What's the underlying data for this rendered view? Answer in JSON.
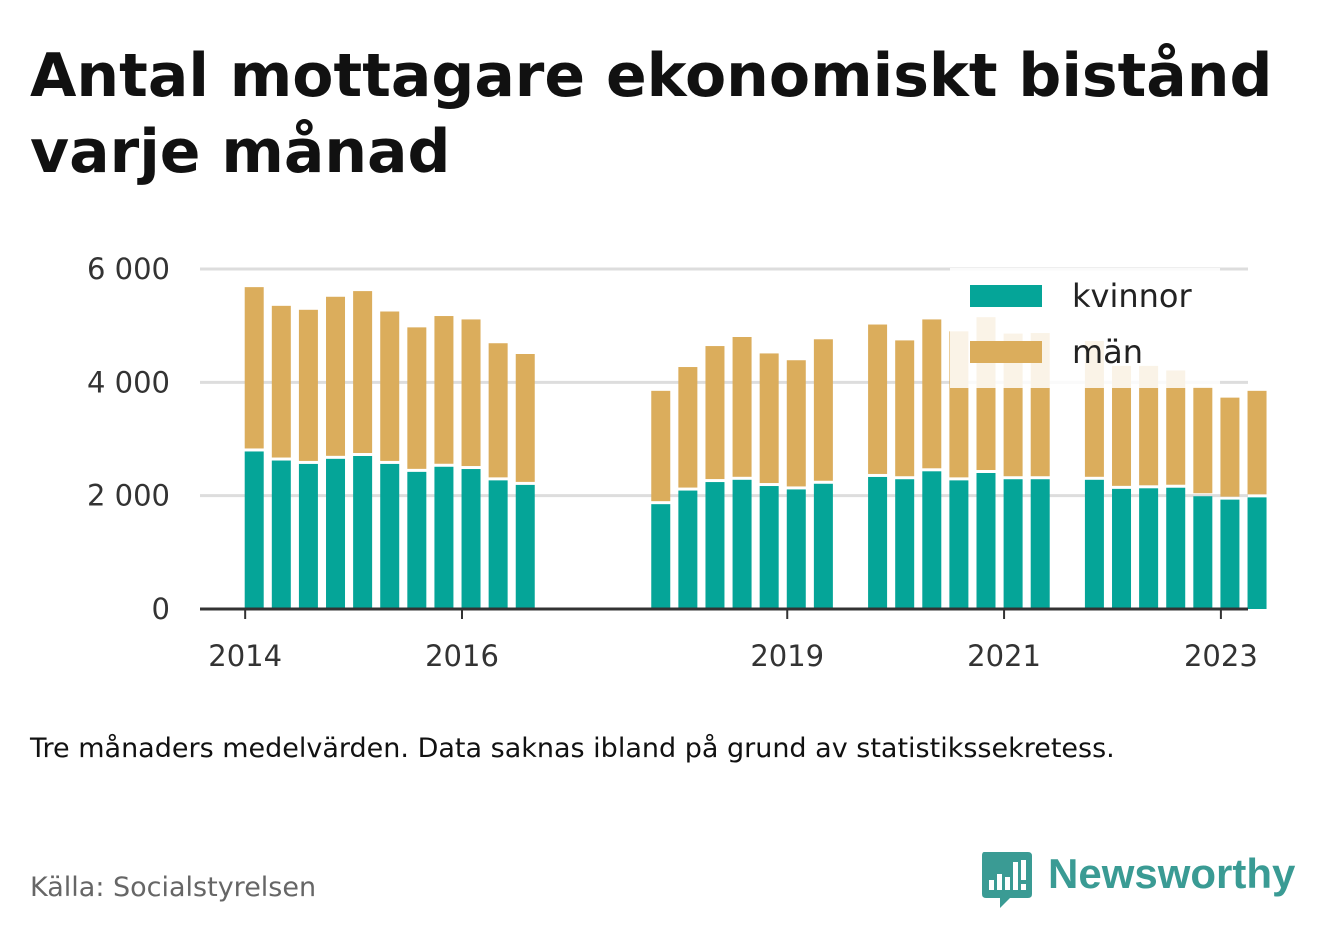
{
  "title": "Antal mottagare ekonomiskt bistånd varje månad",
  "note": "Tre månaders medelvärden. Data saknas ibland på grund av statistikssekretess.",
  "source": "Källa: Socialstyrelsen",
  "logo": {
    "text": "Newsworthy",
    "icon": "chart-bubble-icon"
  },
  "colors": {
    "kvinnor": "#05a598",
    "man": "#dbad5c",
    "grid": "#dddddd",
    "axis": "#333333",
    "logo": "#3a9b94"
  },
  "chart_data": {
    "type": "bar",
    "stacked": true,
    "ylim": [
      0,
      6000
    ],
    "yticks": [
      {
        "value": 0,
        "label": "0"
      },
      {
        "value": 2000,
        "label": "2 000"
      },
      {
        "value": 4000,
        "label": "4 000"
      },
      {
        "value": 6000,
        "label": "6 000"
      }
    ],
    "xlim": [
      "2014-01",
      "2023-09"
    ],
    "xticks": [
      {
        "date": "2014-06",
        "label": "2014"
      },
      {
        "date": "2016-06",
        "label": "2016"
      },
      {
        "date": "2019-06",
        "label": "2019"
      },
      {
        "date": "2021-06",
        "label": "2021"
      },
      {
        "date": "2023-06",
        "label": "2023"
      }
    ],
    "grid": true,
    "legend_position": "top-right",
    "series": [
      {
        "name": "kvinnor",
        "values": [
          2780,
          2620,
          2560,
          2650,
          2700,
          2560,
          2420,
          2510,
          2470,
          2270,
          2190,
          1850,
          2090,
          2240,
          2280,
          2170,
          2110,
          2210,
          2330,
          2290,
          2430,
          2270,
          2400,
          2290,
          2290,
          2280,
          2120,
          2130,
          2140,
          1990,
          1930,
          1970
        ]
      },
      {
        "name": "män",
        "values": [
          2900,
          2730,
          2720,
          2860,
          2910,
          2690,
          2550,
          2660,
          2640,
          2420,
          2310,
          2000,
          2180,
          2400,
          2520,
          2340,
          2280,
          2550,
          2690,
          2450,
          2680,
          2630,
          2750,
          2570,
          2580,
          2450,
          2170,
          2160,
          2070,
          1930,
          1800,
          1880
        ]
      }
    ],
    "x": [
      "2014-07",
      "2014-10",
      "2015-01",
      "2015-04",
      "2015-07",
      "2015-10",
      "2016-01",
      "2016-04",
      "2016-07",
      "2016-10",
      "2017-01",
      "2018-04",
      "2018-07",
      "2018-10",
      "2019-01",
      "2019-04",
      "2019-07",
      "2019-10",
      "2020-04",
      "2020-07",
      "2020-10",
      "2021-01",
      "2021-04",
      "2021-07",
      "2021-10",
      "2022-04",
      "2022-07",
      "2022-10",
      "2023-01",
      "2023-04",
      "2023-07",
      "2023-10"
    ]
  }
}
